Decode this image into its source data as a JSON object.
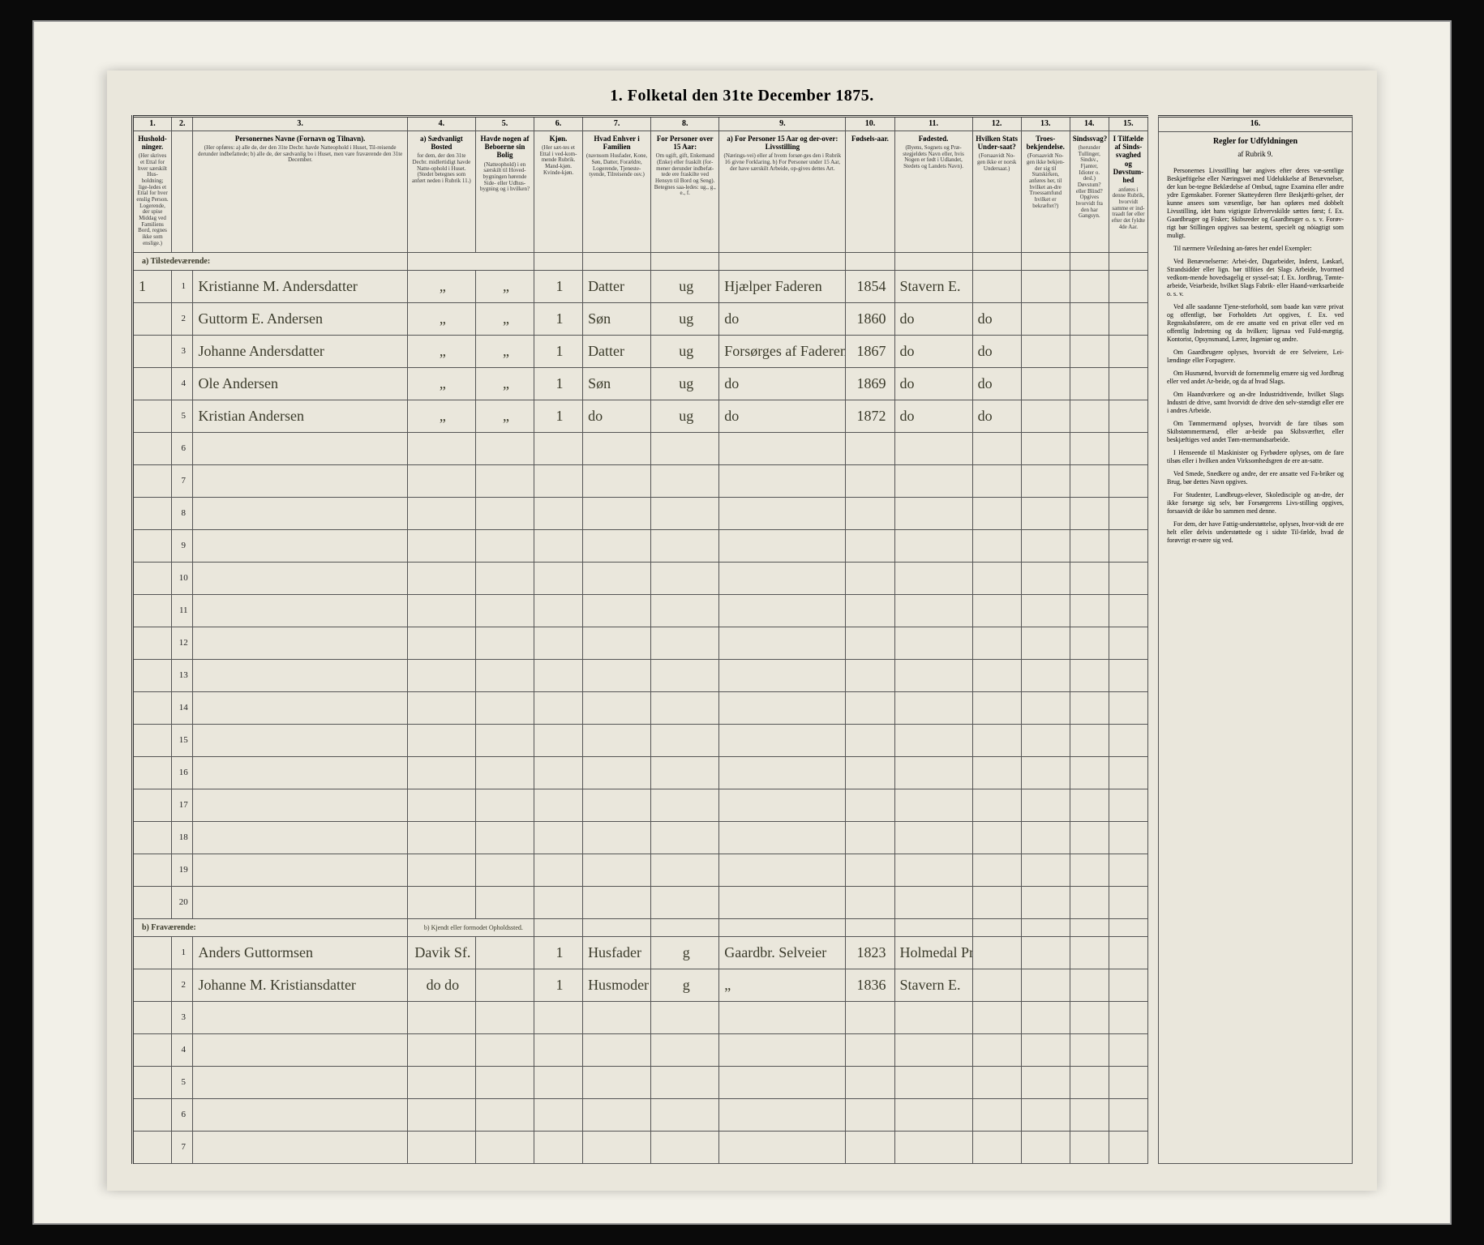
{
  "title": "1. Folketal den 31te December 1875.",
  "colors": {
    "page_bg": "#eae7dc",
    "frame_bg": "#f2f0e8",
    "outer_bg": "#0a0a0a",
    "rule": "#555555",
    "ink": "#3a3a2a"
  },
  "columns": {
    "nums": [
      "1.",
      "2.",
      "3.",
      "4.",
      "5.",
      "6.",
      "7.",
      "8.",
      "9.",
      "10.",
      "11.",
      "12.",
      "13.",
      "14.",
      "15."
    ],
    "widths_pct": [
      4,
      2.2,
      22,
      7,
      6,
      5,
      7,
      7,
      13,
      5,
      8,
      5,
      5,
      4,
      4
    ],
    "headers": [
      {
        "label": "Hushold-ninger.",
        "sub": "(Her skrives et Ettal for hver særskilt Hus-holdning; lige-ledes et Ettal for hver enslig Person. Logerende, der spise Middag ved Familiens Bord, regnes ikke som enslige.)"
      },
      {
        "label": "",
        "sub": ""
      },
      {
        "label": "Personernes Navne (Fornavn og Tilnavn).",
        "sub": "(Her opføres: a) alle de, der den 31te Decbr. havde Natteophold i Huset, Til-reisende derunder indbefattede; b) alle de, der sædvanlig bo i Huset, men vare fraværende den 31te December."
      },
      {
        "label": "a) Sædvanligt Bosted",
        "sub": "for dem, der den 31te Decbr. midlertidigt havde Natte-ophold i Huset. (Stedet betegnes som anført neden i Rubrik 11.)"
      },
      {
        "label": "Havde nogen af Beboerne sin Bolig",
        "sub": "(Natteophold) i en særskilt til Hoved-bygningen hørende Side- eller Udhus-bygning og i hvilken?"
      },
      {
        "label": "Kjøn.",
        "sub": "(Her sæt-tes et Ettal i ved-kom-mende Rubrik. Mand-kjøn. Kvinde-kjøn."
      },
      {
        "label": "Hvad Enhver i Familien",
        "sub": "(navnsom Husfader, Kone, Søn, Datter, Forældre, Logerende, Tjeneste-tyende, Tilreisende osv.)"
      },
      {
        "label": "For Personer over 15 Aar:",
        "sub": "Om ugift, gift, Enkemand (Enke) eller fraskilt (for-mener derunder indbefat-tede ere fraskilte ved Hensyn til Bord og Seng). Betegnes saa-ledes: ug., g., e., f."
      },
      {
        "label": "a) For Personer 15 Aar og der-over: Livsstilling",
        "sub": "(Nærings-vei) eller af hvem forsør-ges den i Rubrik 16 givne Forklaring. b) For Personer under 15 Aar, der have særskilt Arbeide, op-gives dettes Art."
      },
      {
        "label": "Fødsels-aar.",
        "sub": ""
      },
      {
        "label": "Fødested.",
        "sub": "(Byens, Sognets og Præ-stegjeldets Navn eller, hvis Nogen er født i Udlandet, Stedets og Landets Navn)."
      },
      {
        "label": "Hvilken Stats Under-saat?",
        "sub": "(Forsaavidt No-gen ikke er norsk Undersaat.)"
      },
      {
        "label": "Troes-bekjendelse.",
        "sub": "(Forsaavidt No-gen ikke bekjen-der sig til Statskirken, anføres her, til hvilket an-dre Troessamfund hvilket er bekræftet?)"
      },
      {
        "label": "Sindssvag?",
        "sub": "(herunder Tullinger, Sindsv., Fjanter, Idioter o. desl.) Døvstum? eller Blind? Opgives hvorvidt fra den har Gangsyn."
      },
      {
        "label": "I Tilfælde af Sinds-svaghed og Døvstum-hed",
        "sub": "anføres i denne Rubrik, hvorvidt samme er ind-traadt før eller efter det fyldte 4de Aar."
      }
    ]
  },
  "section_a_label": "a) Tilstedeværende:",
  "section_b_label": "b) Fraværende:",
  "section_b_col2": "b) Kjendt eller formodet Opholdssted.",
  "rows_a": [
    {
      "n": "1",
      "hh": "1",
      "name": "Kristianne M. Andersdatter",
      "c4": "„",
      "c5": "„",
      "c6": "1",
      "c7": "Datter",
      "c8": "ug",
      "c9": "Hjælper Faderen",
      "c10": "1854",
      "c11": "Stavern E.",
      "c12": "",
      "c13": "",
      "c14": "",
      "c15": ""
    },
    {
      "n": "2",
      "hh": "",
      "name": "Guttorm E. Andersen",
      "c4": "„",
      "c5": "„",
      "c6": "1",
      "c7": "Søn",
      "c8": "ug",
      "c9": "do",
      "c10": "1860",
      "c11": "do",
      "c12": "do",
      "c13": "",
      "c14": "",
      "c15": ""
    },
    {
      "n": "3",
      "hh": "",
      "name": "Johanne Andersdatter",
      "c4": "„",
      "c5": "„",
      "c6": "1",
      "c7": "Datter",
      "c8": "ug",
      "c9": "Forsørges af Faderen",
      "c10": "1867",
      "c11": "do",
      "c12": "do",
      "c13": "",
      "c14": "",
      "c15": ""
    },
    {
      "n": "4",
      "hh": "",
      "name": "Ole Andersen",
      "c4": "„",
      "c5": "„",
      "c6": "1",
      "c7": "Søn",
      "c8": "ug",
      "c9": "do",
      "c10": "1869",
      "c11": "do",
      "c12": "do",
      "c13": "",
      "c14": "",
      "c15": ""
    },
    {
      "n": "5",
      "hh": "",
      "name": "Kristian Andersen",
      "c4": "„",
      "c5": "„",
      "c6": "1",
      "c7": "do",
      "c8": "ug",
      "c9": "do",
      "c10": "1872",
      "c11": "do",
      "c12": "do",
      "c13": "",
      "c14": "",
      "c15": ""
    },
    {
      "n": "6"
    },
    {
      "n": "7"
    },
    {
      "n": "8"
    },
    {
      "n": "9"
    },
    {
      "n": "10"
    },
    {
      "n": "11"
    },
    {
      "n": "12"
    },
    {
      "n": "13"
    },
    {
      "n": "14"
    },
    {
      "n": "15"
    },
    {
      "n": "16"
    },
    {
      "n": "17"
    },
    {
      "n": "18"
    },
    {
      "n": "19"
    },
    {
      "n": "20"
    }
  ],
  "rows_b": [
    {
      "n": "1",
      "hh": "",
      "name": "Anders Guttormsen",
      "c4": "Davik Sf.",
      "c5": "",
      "c6": "1",
      "c7": "Husfader",
      "c8": "g",
      "c9": "Gaardbr. Selveier",
      "c10": "1823",
      "c11": "Holmedal Prstg.",
      "c12": "",
      "c13": "",
      "c14": "",
      "c15": ""
    },
    {
      "n": "2",
      "hh": "",
      "name": "Johanne M. Kristiansdatter",
      "c4": "do do",
      "c5": "",
      "c6": "1",
      "c7": "Husmoder",
      "c8": "g",
      "c9": "„",
      "c10": "1836",
      "c11": "Stavern E.",
      "c12": "",
      "c13": "",
      "c14": "",
      "c15": ""
    },
    {
      "n": "3"
    },
    {
      "n": "4"
    },
    {
      "n": "5"
    },
    {
      "n": "6"
    },
    {
      "n": "7"
    }
  ],
  "sidebar": {
    "col_num": "16.",
    "head": "Regler for Udfyldningen",
    "sub": "af Rubrik 9.",
    "paras": [
      "Personernes Livsstilling bør angives efter deres væ-sentlige Beskjæftigelse eller Næringsvei med Udelukkelse af Benævnelser, der kun be-tegne Beklædelse af Ombud, tagne Examina eller andre ydre Egenskaber. Forener Skatteyderen flere Beskjæfti-gelser, der kunne ansees som væsentlige, bør han opføres med dobbelt Livsstilling, idet hans vigtigste Erhvervskilde sættes først; f. Ex. Gaardbruger og Fisker; Skibsreder og Gaardbruger o. s. v. Forøv-rigt bør Stillingen opgives saa bestemt, specielt og nöiagtigt som muligt.",
      "Til nærmere Veiledning an-føres her endel Exempler:",
      "Ved Benævnelserne: Arbei-der, Dagarbeider, Inderst, Løskarl, Strandsidder eller lign. bør tilföies det Slags Arbeide, hvormed vedkom-mende hovedsagelig er syssel-sat; f. Ex. Jordbrug, Tømte-arbeide, Veiarbeide, hvilket Slags Fabrik- eller Haand-værksarbeide o. s. v.",
      "Ved alle saadanne Tjene-steforhold, som baade kan være privat og offentligt, bør Forholdets Art opgives, f. Ex. ved Regnskabsførere, om de ere ansatte ved en privat eller ved en offentlig Indretning og da hvilken; ligesaa ved Fuld-mægtig, Kontorist, Opsynsmand, Lærer, Ingeniør og andre.",
      "Om Gaardbrugere oplyses, hvorvidt de ere Selveiere, Lei-lændinge eller Forpagtere.",
      "Om Husmænd, hvorvidt de fornemmelig ernære sig ved Jordbrug eller ved andet Ar-beide, og da af hvad Slags.",
      "Om Haandværkere og an-dre Industridrivende, hvilket Slags Industri de drive, samt hvorvidt de drive den selv-stændigt eller ere i andres Arbeide.",
      "Om Tømmermænd oplyses, hvorvidt de fare tilsøs som Skibstømmermænd, eller ar-beide paa Skibsværfter, eller beskjæftiges ved andet Tøm-mermandsarbeide.",
      "I Henseende til Maskinister og Fyrbødere oplyses, om de fare tilsøs eller i hvilken anden Virksomhedsgren de ere an-satte.",
      "Ved Smede, Snedkere og andre, der ere ansatte ved Fa-briker og Brug, bør dettes Navn opgives.",
      "For Studenter, Landbrugs-elever, Skoledisciple og an-dre, der ikke forsørge sig selv, bør Forsørgerens Livs-stilling opgives, forsaavidt de ikke bo sammen med denne.",
      "For dem, der have Fattig-understøttelse, oplyses, hvor-vidt de ere helt eller delvis understøttede og i sidste Til-fælde, hvad de forøvrigt er-nære sig ved."
    ]
  }
}
